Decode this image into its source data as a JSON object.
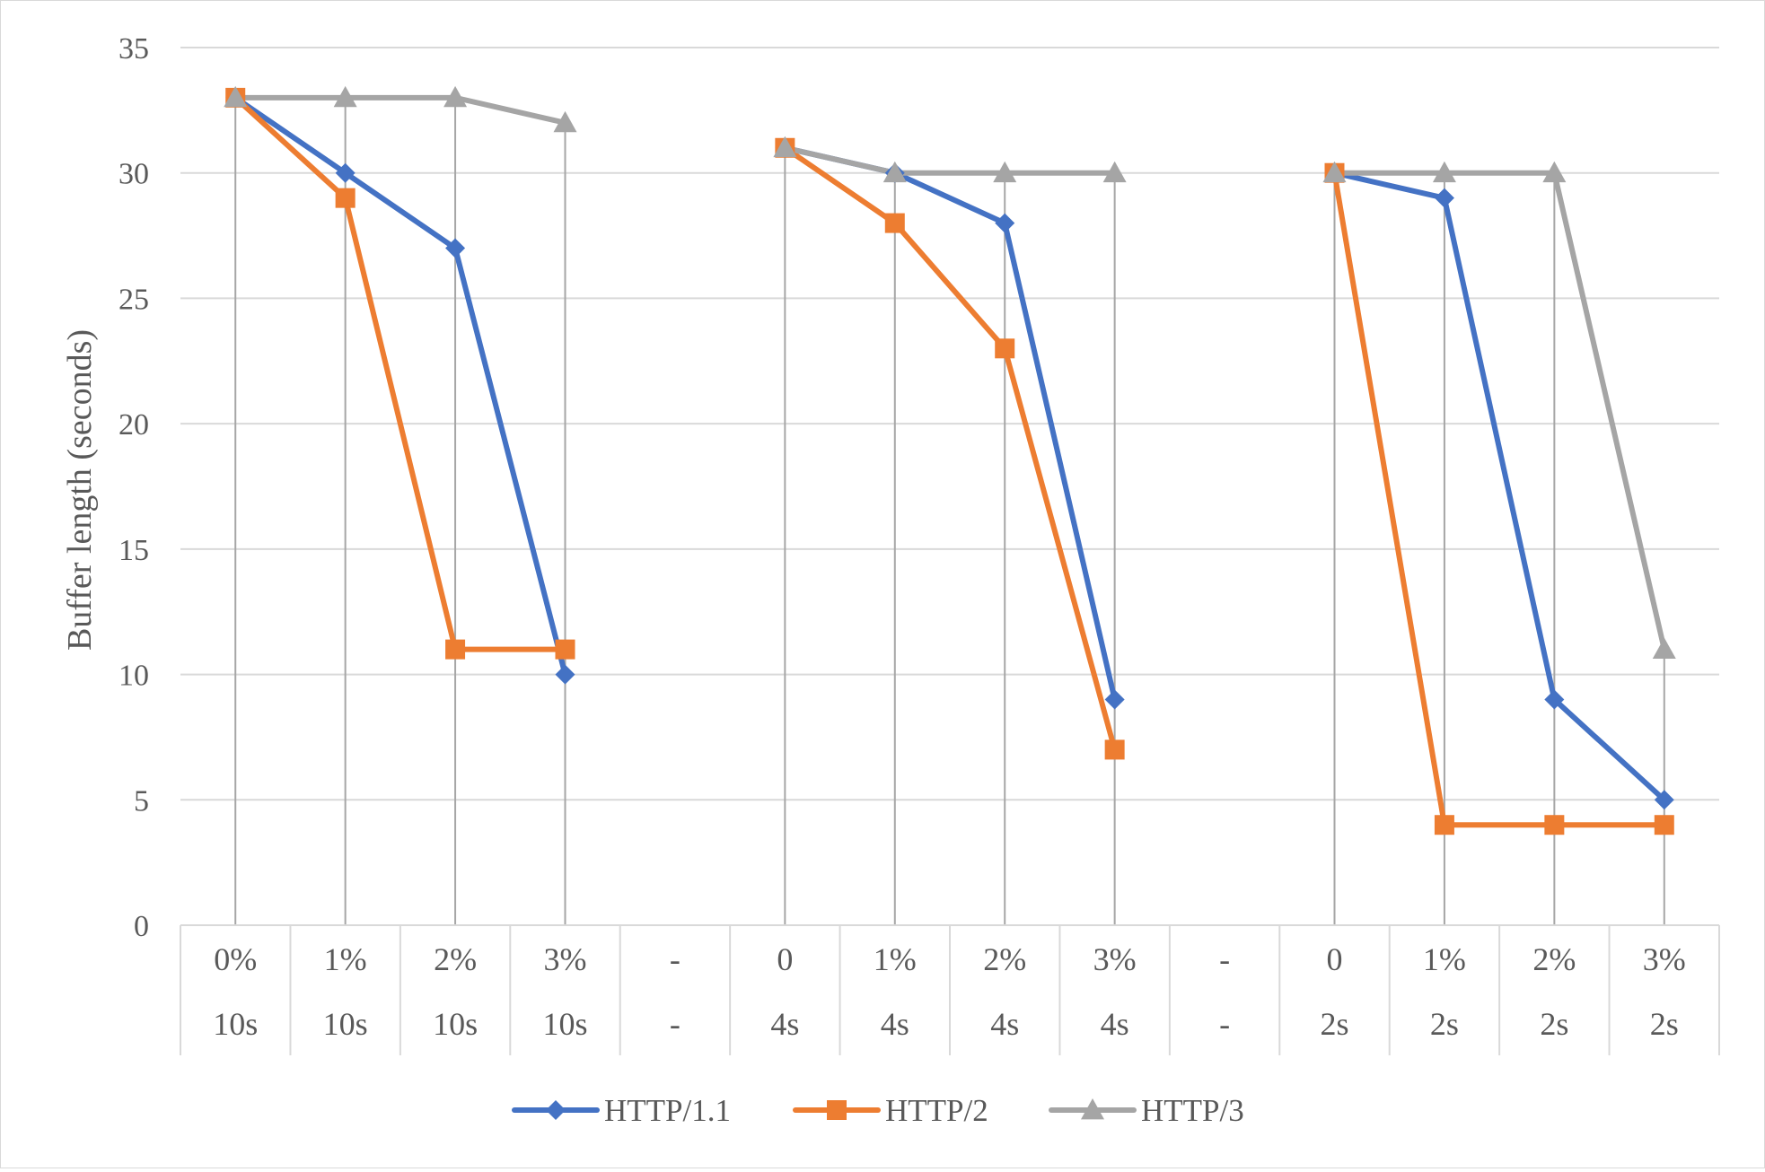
{
  "chart_data": {
    "type": "line",
    "title": "",
    "xlabel": "",
    "ylabel": "Buffer length (seconds)",
    "ylim": [
      0,
      35
    ],
    "yticks": [
      0,
      5,
      10,
      15,
      20,
      25,
      30,
      35
    ],
    "grid": true,
    "legend_position": "bottom",
    "categories": [
      {
        "top": "0%",
        "bottom": "10s"
      },
      {
        "top": "1%",
        "bottom": "10s"
      },
      {
        "top": "2%",
        "bottom": "10s"
      },
      {
        "top": "3%",
        "bottom": "10s"
      },
      {
        "top": "-",
        "bottom": "-"
      },
      {
        "top": "0",
        "bottom": "4s"
      },
      {
        "top": "1%",
        "bottom": "4s"
      },
      {
        "top": "2%",
        "bottom": "4s"
      },
      {
        "top": "3%",
        "bottom": "4s"
      },
      {
        "top": "-",
        "bottom": "-"
      },
      {
        "top": "0",
        "bottom": "2s"
      },
      {
        "top": "1%",
        "bottom": "2s"
      },
      {
        "top": "2%",
        "bottom": "2s"
      },
      {
        "top": "3%",
        "bottom": "2s"
      }
    ],
    "series": [
      {
        "name": "HTTP/1.1",
        "color": "#4472c4",
        "marker": "diamond",
        "values": [
          33,
          30,
          27,
          10,
          null,
          31,
          30,
          28,
          9,
          null,
          30,
          29,
          9,
          5
        ]
      },
      {
        "name": "HTTP/2",
        "color": "#ed7d31",
        "marker": "square",
        "values": [
          33,
          29,
          11,
          11,
          null,
          31,
          28,
          23,
          7,
          null,
          30,
          4,
          4,
          4
        ]
      },
      {
        "name": "HTTP/3",
        "color": "#a5a5a5",
        "marker": "triangle",
        "values": [
          33,
          33,
          33,
          32,
          null,
          31,
          30,
          30,
          30,
          null,
          30,
          30,
          30,
          11
        ]
      }
    ]
  }
}
